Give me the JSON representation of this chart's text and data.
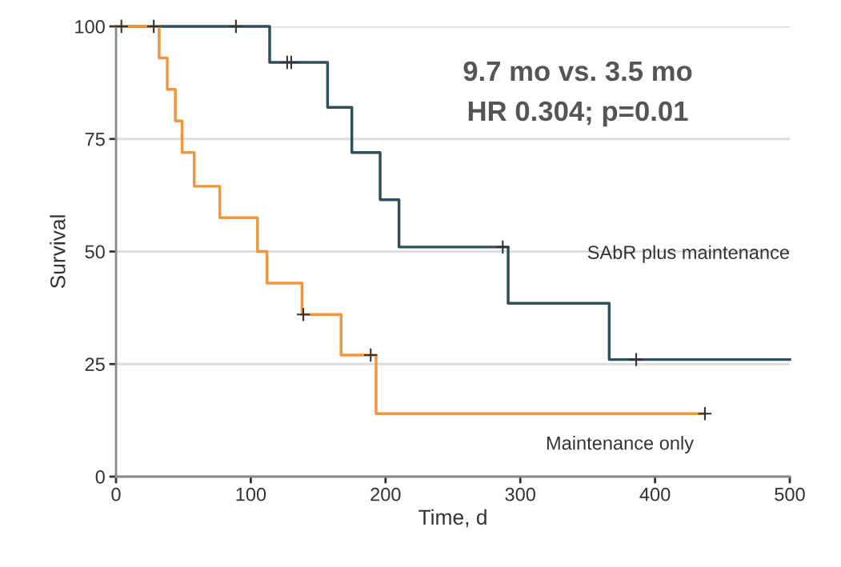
{
  "chart_data": {
    "type": "step",
    "xlabel": "Time, d",
    "ylabel": "Survival",
    "series": [
      {
        "name": "SAbR plus maintenance",
        "color": "#2f4f5a",
        "x": [
          0,
          114,
          157,
          175,
          196,
          210,
          291,
          366,
          500
        ],
        "values": [
          100,
          92,
          82,
          72,
          61.5,
          51,
          38.5,
          26,
          26
        ]
      },
      {
        "name": "Maintenance only",
        "color": "#f0963c",
        "x": [
          0,
          32,
          38,
          44,
          49,
          58,
          77,
          105,
          112,
          138,
          167,
          193,
          437
        ],
        "values": [
          100,
          93,
          86,
          79,
          72,
          64.5,
          57.5,
          50,
          43,
          36,
          27,
          14,
          14
        ]
      },
      {
        "type": "scatter",
        "marker": "cross",
        "color": "#333333",
        "x": [
          4,
          28,
          89,
          127,
          130,
          139,
          189,
          287,
          386,
          437
        ],
        "values": [
          100,
          100,
          100,
          92,
          92,
          36,
          27,
          51,
          26,
          14
        ]
      }
    ],
    "annotations": [
      "9.7 mo vs. 3.5 mo",
      "HR 0.304; p=0.01"
    ],
    "xlim": [
      0,
      500
    ],
    "xticks": [
      0,
      100,
      200,
      300,
      400,
      500
    ],
    "ylim": [
      0,
      100
    ],
    "yticks": [
      0,
      25,
      50,
      75,
      100
    ],
    "grid": "y",
    "legend": false
  }
}
